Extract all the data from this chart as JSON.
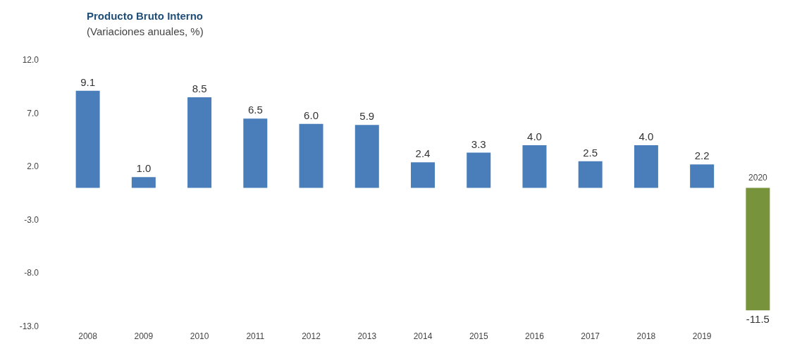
{
  "chart_data": {
    "type": "bar",
    "title": "Producto Bruto Interno",
    "subtitle": "(Variaciones anuales, %)",
    "categories": [
      "2008",
      "2009",
      "2010",
      "2011",
      "2012",
      "2013",
      "2014",
      "2015",
      "2016",
      "2017",
      "2018",
      "2019",
      "2020"
    ],
    "values": [
      9.1,
      1.0,
      8.5,
      6.5,
      6.0,
      5.9,
      2.4,
      3.3,
      4.0,
      2.5,
      4.0,
      2.2,
      -11.5
    ],
    "colors": [
      "#4a7ebb",
      "#4a7ebb",
      "#4a7ebb",
      "#4a7ebb",
      "#4a7ebb",
      "#4a7ebb",
      "#4a7ebb",
      "#4a7ebb",
      "#4a7ebb",
      "#4a7ebb",
      "#4a7ebb",
      "#4a7ebb",
      "#77933c"
    ],
    "value_labels": [
      "9.1",
      "1.0",
      "8.5",
      "6.5",
      "6.0",
      "5.9",
      "2.4",
      "3.3",
      "4.0",
      "2.5",
      "4.0",
      "2.2",
      "-11.5"
    ],
    "ylim": [
      -13.0,
      12.0
    ],
    "yticks": [
      {
        "value": -13,
        "label": "-13.0"
      },
      {
        "value": -8,
        "label": "-8.0"
      },
      {
        "value": -3,
        "label": "-3.0"
      },
      {
        "value": 2,
        "label": "2.0"
      },
      {
        "value": 7,
        "label": "7.0"
      },
      {
        "value": 12,
        "label": "12.0"
      }
    ],
    "grid": false
  }
}
